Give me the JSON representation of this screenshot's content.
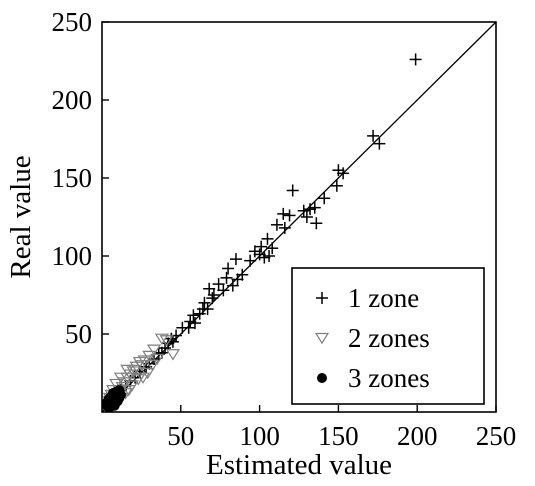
{
  "chart_data": {
    "type": "scatter",
    "xlabel": "Estimated value",
    "ylabel": "Real value",
    "xlim": [
      0,
      250
    ],
    "ylim": [
      0,
      250
    ],
    "x_ticks": [
      50,
      100,
      150,
      200,
      250
    ],
    "y_ticks": [
      50,
      100,
      150,
      200,
      250
    ],
    "grid": false,
    "legend_position": "lower-right",
    "reference_line": {
      "type": "identity",
      "from": [
        0,
        0
      ],
      "to": [
        250,
        250
      ]
    },
    "series": [
      {
        "name": "1 zone",
        "marker": "plus",
        "color": "#000000",
        "points": [
          [
            199,
            226
          ],
          [
            172,
            177
          ],
          [
            176,
            172
          ],
          [
            150,
            155
          ],
          [
            153,
            153
          ],
          [
            149,
            145
          ],
          [
            141,
            137
          ],
          [
            135,
            131
          ],
          [
            132,
            130
          ],
          [
            128,
            129
          ],
          [
            136,
            121
          ],
          [
            130,
            125
          ],
          [
            121,
            142
          ],
          [
            115,
            127
          ],
          [
            119,
            126
          ],
          [
            111,
            120
          ],
          [
            116,
            118
          ],
          [
            105,
            111
          ],
          [
            101,
            106
          ],
          [
            100,
            101
          ],
          [
            106,
            100
          ],
          [
            103,
            99
          ],
          [
            108,
            105
          ],
          [
            97,
            103
          ],
          [
            94,
            97
          ],
          [
            85,
            98
          ],
          [
            80,
            92
          ],
          [
            79,
            86
          ],
          [
            74,
            82
          ],
          [
            77,
            78
          ],
          [
            71,
            75
          ],
          [
            68,
            79
          ],
          [
            65,
            70
          ],
          [
            67,
            66
          ],
          [
            62,
            63
          ],
          [
            58,
            62
          ],
          [
            59,
            57
          ],
          [
            56,
            58
          ],
          [
            55,
            54
          ],
          [
            51,
            54
          ],
          [
            47,
            49
          ],
          [
            44,
            47
          ],
          [
            45,
            45
          ],
          [
            42,
            44
          ],
          [
            40,
            41
          ],
          [
            38,
            38
          ],
          [
            36,
            37
          ],
          [
            33,
            34
          ],
          [
            30,
            31
          ],
          [
            28,
            29
          ],
          [
            24,
            26
          ],
          [
            21,
            22
          ],
          [
            18,
            20
          ],
          [
            15,
            17
          ],
          [
            12,
            14
          ],
          [
            10,
            11
          ],
          [
            8,
            9
          ],
          [
            6,
            7
          ],
          [
            5,
            5
          ],
          [
            4,
            4
          ],
          [
            89,
            88
          ],
          [
            86,
            85
          ],
          [
            83,
            81
          ],
          [
            70,
            73
          ],
          [
            64,
            66
          ]
        ]
      },
      {
        "name": "2 zones",
        "marker": "triangle-down",
        "color": "#7f7f7f",
        "points": [
          [
            41,
            46
          ],
          [
            38,
            47
          ],
          [
            33,
            40
          ],
          [
            30,
            36
          ],
          [
            35,
            34
          ],
          [
            27,
            33
          ],
          [
            25,
            30
          ],
          [
            22,
            29
          ],
          [
            20,
            26
          ],
          [
            18,
            24
          ],
          [
            16,
            22
          ],
          [
            14,
            19
          ],
          [
            13,
            16
          ],
          [
            11,
            14
          ],
          [
            10,
            12
          ],
          [
            8,
            10
          ],
          [
            7,
            9
          ],
          [
            6,
            8
          ],
          [
            5,
            7
          ],
          [
            4,
            5
          ],
          [
            23,
            21
          ],
          [
            19,
            17
          ],
          [
            15,
            12
          ],
          [
            12,
            9
          ],
          [
            9,
            7
          ],
          [
            29,
            25
          ],
          [
            26,
            22
          ],
          [
            17,
            14
          ],
          [
            45,
            37
          ],
          [
            32,
            30
          ],
          [
            24,
            32
          ],
          [
            21,
            27
          ],
          [
            16,
            27
          ],
          [
            12,
            22
          ],
          [
            9,
            18
          ],
          [
            7,
            14
          ],
          [
            6,
            11
          ],
          [
            5,
            9
          ]
        ]
      },
      {
        "name": "3 zones",
        "marker": "circle",
        "color": "#000000",
        "points": [
          [
            3,
            4
          ],
          [
            4,
            3
          ],
          [
            5,
            5
          ],
          [
            5,
            7
          ],
          [
            6,
            4
          ],
          [
            6,
            6
          ],
          [
            7,
            8
          ],
          [
            7,
            5
          ],
          [
            8,
            7
          ],
          [
            8,
            9
          ],
          [
            9,
            6
          ],
          [
            9,
            10
          ],
          [
            10,
            8
          ],
          [
            10,
            12
          ],
          [
            11,
            9
          ],
          [
            12,
            11
          ],
          [
            3,
            6
          ],
          [
            4,
            8
          ],
          [
            5,
            3
          ],
          [
            6,
            10
          ],
          [
            7,
            12
          ],
          [
            8,
            4
          ],
          [
            9,
            13
          ],
          [
            11,
            14
          ],
          [
            4,
            5
          ],
          [
            6,
            7
          ],
          [
            7,
            7
          ],
          [
            8,
            6
          ],
          [
            5,
            9
          ],
          [
            10,
            7
          ]
        ]
      }
    ]
  }
}
